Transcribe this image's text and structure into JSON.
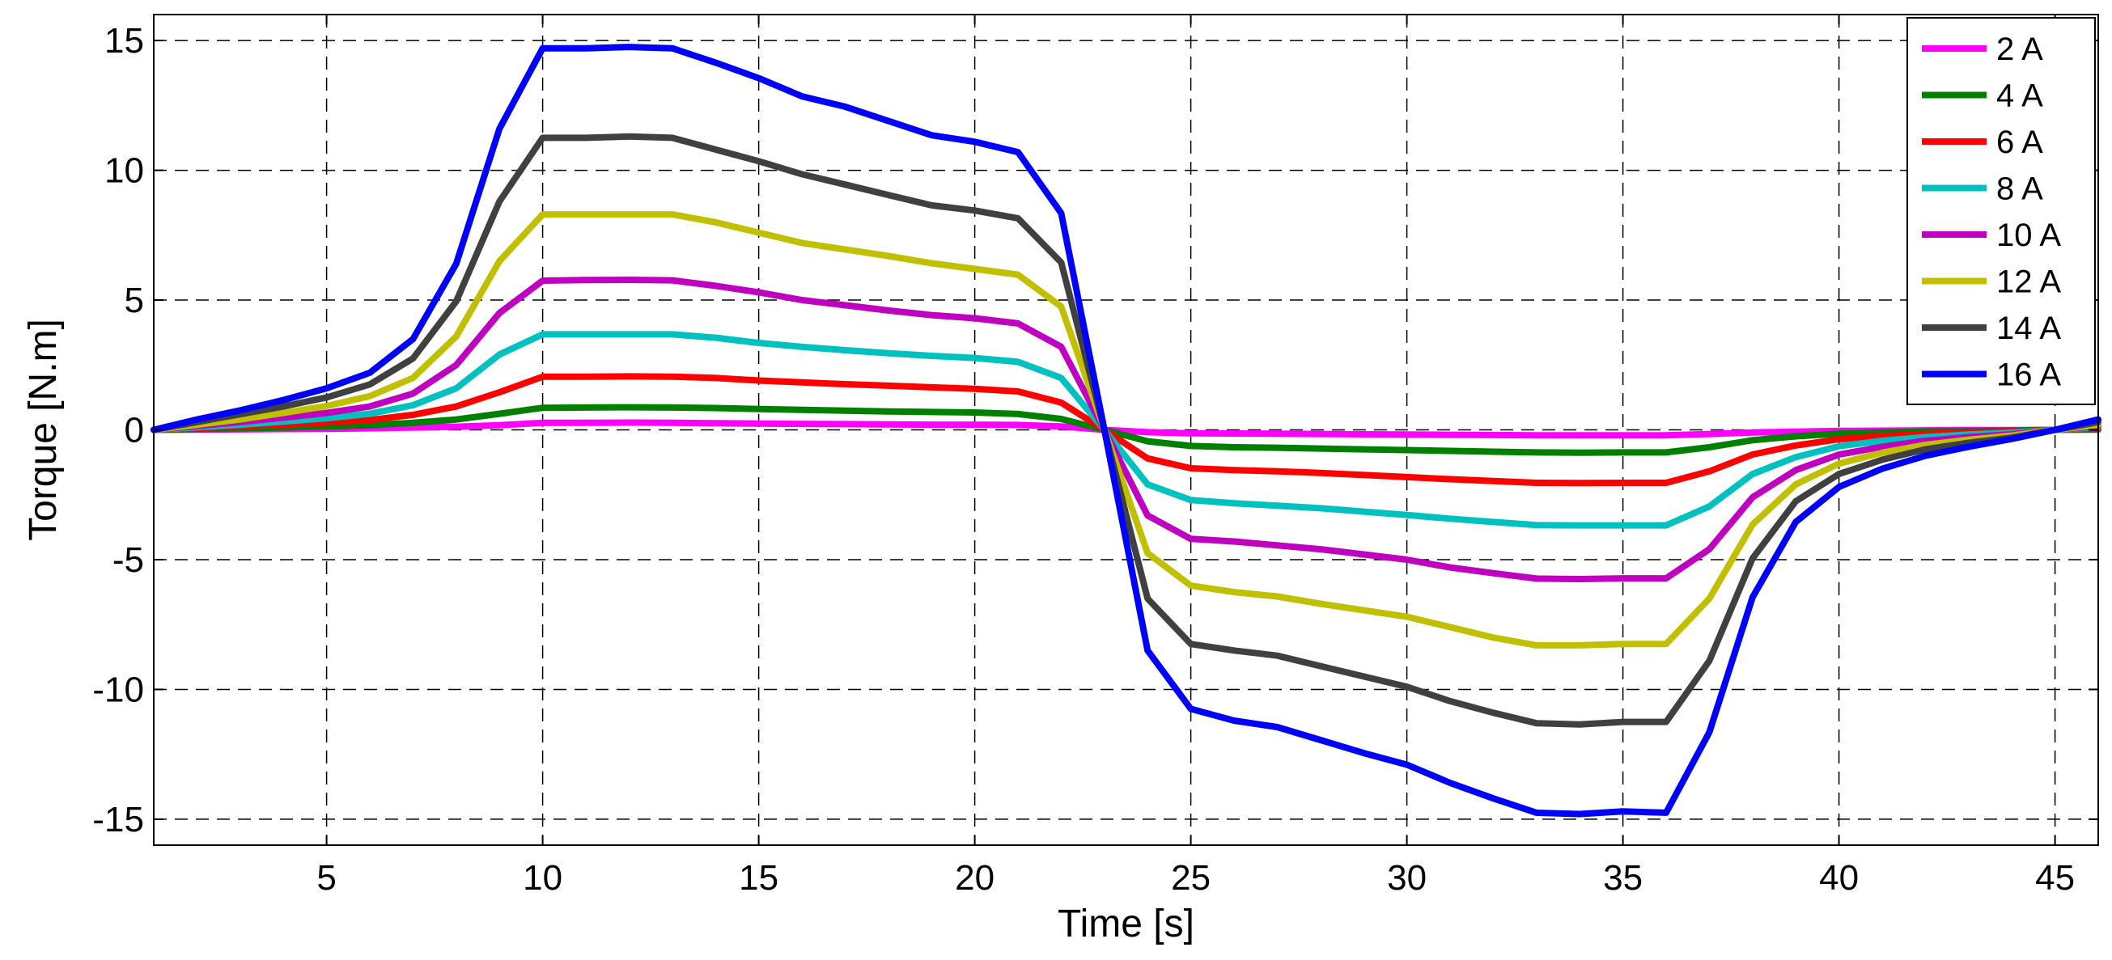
{
  "chart_data": {
    "type": "line",
    "title": "",
    "xlabel": "Time [s]",
    "ylabel": "Torque [N.m]",
    "xlim": [
      1,
      46
    ],
    "ylim": [
      -16,
      16
    ],
    "xticks": [
      5,
      10,
      15,
      20,
      25,
      30,
      35,
      40,
      45
    ],
    "yticks": [
      -15,
      -10,
      -5,
      0,
      5,
      10,
      15
    ],
    "xtick_labels": [
      "5",
      "10",
      "15",
      "20",
      "25",
      "30",
      "35",
      "40",
      "45"
    ],
    "ytick_labels": [
      "-15",
      "-10",
      "-5",
      "0",
      "5",
      "10",
      "15"
    ],
    "grid": true,
    "legend_position": "top-right",
    "x": [
      1,
      2,
      3,
      4,
      5,
      6,
      7,
      8,
      9,
      10,
      11,
      12,
      13,
      14,
      15,
      16,
      17,
      18,
      19,
      20,
      21,
      22,
      23,
      24,
      25,
      26,
      27,
      28,
      29,
      30,
      31,
      32,
      33,
      34,
      35,
      36,
      37,
      38,
      39,
      40,
      41,
      42,
      43,
      44,
      45,
      46
    ],
    "series": [
      {
        "name": "2 A",
        "color": "#ff00ff",
        "values": [
          0,
          0.01,
          0.02,
          0.03,
          0.04,
          0.06,
          0.09,
          0.12,
          0.18,
          0.27,
          0.27,
          0.28,
          0.27,
          0.26,
          0.24,
          0.23,
          0.22,
          0.21,
          0.2,
          0.2,
          0.19,
          0.13,
          0,
          -0.09,
          -0.13,
          -0.14,
          -0.15,
          -0.16,
          -0.17,
          -0.18,
          -0.19,
          -0.2,
          -0.21,
          -0.21,
          -0.21,
          -0.21,
          -0.16,
          -0.1,
          -0.07,
          -0.04,
          -0.03,
          -0.02,
          -0.01,
          -0.01,
          0,
          0.01
        ]
      },
      {
        "name": "4 A",
        "color": "#008000",
        "values": [
          0,
          0.03,
          0.06,
          0.09,
          0.13,
          0.18,
          0.27,
          0.4,
          0.62,
          0.85,
          0.86,
          0.87,
          0.86,
          0.84,
          0.8,
          0.77,
          0.74,
          0.71,
          0.69,
          0.67,
          0.61,
          0.42,
          0,
          -0.44,
          -0.62,
          -0.67,
          -0.69,
          -0.72,
          -0.75,
          -0.78,
          -0.81,
          -0.84,
          -0.87,
          -0.88,
          -0.87,
          -0.87,
          -0.67,
          -0.4,
          -0.25,
          -0.15,
          -0.1,
          -0.07,
          -0.05,
          -0.03,
          0,
          0.03
        ]
      },
      {
        "name": "6 A",
        "color": "#ff0000",
        "values": [
          0,
          0.07,
          0.13,
          0.2,
          0.28,
          0.38,
          0.58,
          0.9,
          1.45,
          2.05,
          2.05,
          2.06,
          2.05,
          2.0,
          1.9,
          1.83,
          1.76,
          1.7,
          1.64,
          1.58,
          1.48,
          1.05,
          0,
          -1.1,
          -1.48,
          -1.55,
          -1.6,
          -1.66,
          -1.74,
          -1.82,
          -1.9,
          -1.97,
          -2.04,
          -2.05,
          -2.04,
          -2.04,
          -1.6,
          -0.95,
          -0.6,
          -0.36,
          -0.24,
          -0.16,
          -0.11,
          -0.07,
          0,
          0.07
        ]
      },
      {
        "name": "8 A",
        "color": "#00c0c0",
        "values": [
          0,
          0.1,
          0.2,
          0.32,
          0.45,
          0.62,
          0.95,
          1.6,
          2.9,
          3.68,
          3.68,
          3.68,
          3.68,
          3.55,
          3.35,
          3.2,
          3.07,
          2.95,
          2.85,
          2.77,
          2.62,
          2.0,
          0,
          -2.1,
          -2.7,
          -2.83,
          -2.92,
          -3.02,
          -3.15,
          -3.28,
          -3.42,
          -3.55,
          -3.67,
          -3.68,
          -3.68,
          -3.68,
          -2.95,
          -1.7,
          -1.05,
          -0.63,
          -0.42,
          -0.28,
          -0.18,
          -0.11,
          0,
          0.1
        ]
      },
      {
        "name": "10 A",
        "color": "#c000c0",
        "values": [
          0,
          0.15,
          0.3,
          0.47,
          0.65,
          0.9,
          1.4,
          2.5,
          4.5,
          5.75,
          5.77,
          5.78,
          5.76,
          5.55,
          5.3,
          5.0,
          4.8,
          4.6,
          4.42,
          4.3,
          4.1,
          3.2,
          0,
          -3.3,
          -4.2,
          -4.3,
          -4.45,
          -4.6,
          -4.8,
          -5.0,
          -5.3,
          -5.52,
          -5.73,
          -5.75,
          -5.72,
          -5.72,
          -4.6,
          -2.6,
          -1.55,
          -0.95,
          -0.65,
          -0.42,
          -0.28,
          -0.17,
          0,
          0.15
        ]
      },
      {
        "name": "12 A",
        "color": "#c0c000",
        "values": [
          0,
          0.2,
          0.4,
          0.65,
          0.92,
          1.3,
          2.0,
          3.6,
          6.5,
          8.3,
          8.3,
          8.3,
          8.3,
          8.0,
          7.6,
          7.2,
          6.95,
          6.7,
          6.42,
          6.2,
          5.98,
          4.75,
          0,
          -4.75,
          -6.0,
          -6.25,
          -6.42,
          -6.7,
          -6.95,
          -7.2,
          -7.6,
          -8.0,
          -8.3,
          -8.3,
          -8.25,
          -8.25,
          -6.5,
          -3.65,
          -2.1,
          -1.3,
          -0.88,
          -0.58,
          -0.38,
          -0.22,
          0,
          0.2
        ]
      },
      {
        "name": "14 A",
        "color": "#404040",
        "values": [
          0,
          0.3,
          0.6,
          0.9,
          1.25,
          1.75,
          2.75,
          4.95,
          8.8,
          11.25,
          11.25,
          11.3,
          11.25,
          10.8,
          10.35,
          9.85,
          9.45,
          9.05,
          8.65,
          8.45,
          8.15,
          6.45,
          0,
          -6.5,
          -8.25,
          -8.5,
          -8.7,
          -9.1,
          -9.5,
          -9.9,
          -10.45,
          -10.9,
          -11.3,
          -11.35,
          -11.25,
          -11.25,
          -8.9,
          -4.95,
          -2.75,
          -1.7,
          -1.15,
          -0.75,
          -0.5,
          -0.3,
          0,
          0.3
        ]
      },
      {
        "name": "16 A",
        "color": "#0000ff",
        "values": [
          0,
          0.4,
          0.75,
          1.15,
          1.6,
          2.2,
          3.5,
          6.4,
          11.6,
          14.7,
          14.7,
          14.75,
          14.7,
          14.15,
          13.55,
          12.85,
          12.45,
          11.9,
          11.35,
          11.1,
          10.7,
          8.35,
          0,
          -8.5,
          -10.75,
          -11.2,
          -11.45,
          -11.95,
          -12.45,
          -12.9,
          -13.6,
          -14.2,
          -14.75,
          -14.8,
          -14.7,
          -14.75,
          -11.65,
          -6.45,
          -3.55,
          -2.2,
          -1.5,
          -1.0,
          -0.65,
          -0.35,
          0,
          0.4
        ]
      }
    ]
  }
}
